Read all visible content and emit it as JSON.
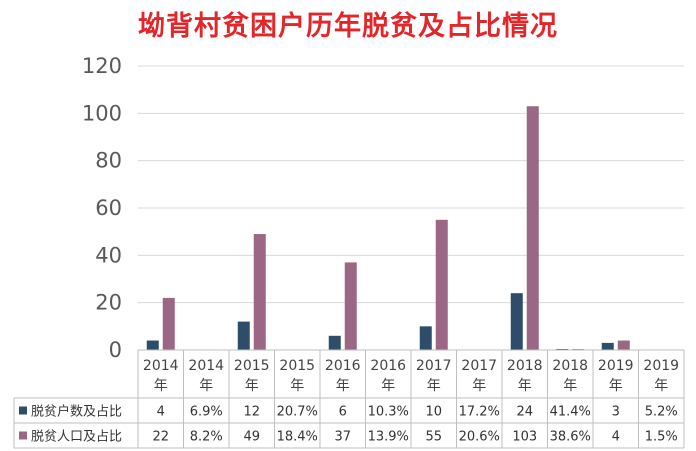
{
  "chart_data": {
    "type": "bar",
    "title": "坳背村贫困户历年脱贫及占比情况",
    "categories": [
      "2014年",
      "2014年",
      "2015年",
      "2015年",
      "2016年",
      "2016年",
      "2017年",
      "2017年",
      "2018年",
      "2018年",
      "2019年",
      "2019年"
    ],
    "category_lines": [
      [
        "2014",
        "年"
      ],
      [
        "2014",
        "年"
      ],
      [
        "2015",
        "年"
      ],
      [
        "2015",
        "年"
      ],
      [
        "2016",
        "年"
      ],
      [
        "2016",
        "年"
      ],
      [
        "2017",
        "年"
      ],
      [
        "2017",
        "年"
      ],
      [
        "2018",
        "年"
      ],
      [
        "2018",
        "年"
      ],
      [
        "2019",
        "年"
      ],
      [
        "2019",
        "年"
      ]
    ],
    "series": [
      {
        "name": "脱贫户数及占比",
        "color": "#2e4d6b",
        "values": [
          4,
          0.069,
          12,
          0.207,
          6,
          0.103,
          10,
          0.172,
          24,
          0.414,
          3,
          0.052
        ],
        "labels": [
          "4",
          "6.9%",
          "12",
          "20.7%",
          "6",
          "10.3%",
          "10",
          "17.2%",
          "24",
          "41.4%",
          "3",
          "5.2%"
        ]
      },
      {
        "name": "脱贫人口及占比",
        "color": "#9c6784",
        "values": [
          22,
          0.082,
          49,
          0.184,
          37,
          0.139,
          55,
          0.206,
          103,
          0.386,
          4,
          0.015
        ],
        "labels": [
          "22",
          "8.2%",
          "49",
          "18.4%",
          "37",
          "13.9%",
          "55",
          "20.6%",
          "103",
          "38.6%",
          "4",
          "1.5%"
        ]
      }
    ],
    "ylim": [
      0,
      120
    ],
    "yticks": [
      0,
      20,
      40,
      60,
      80,
      100,
      120
    ],
    "grid": true,
    "data_table": true
  }
}
